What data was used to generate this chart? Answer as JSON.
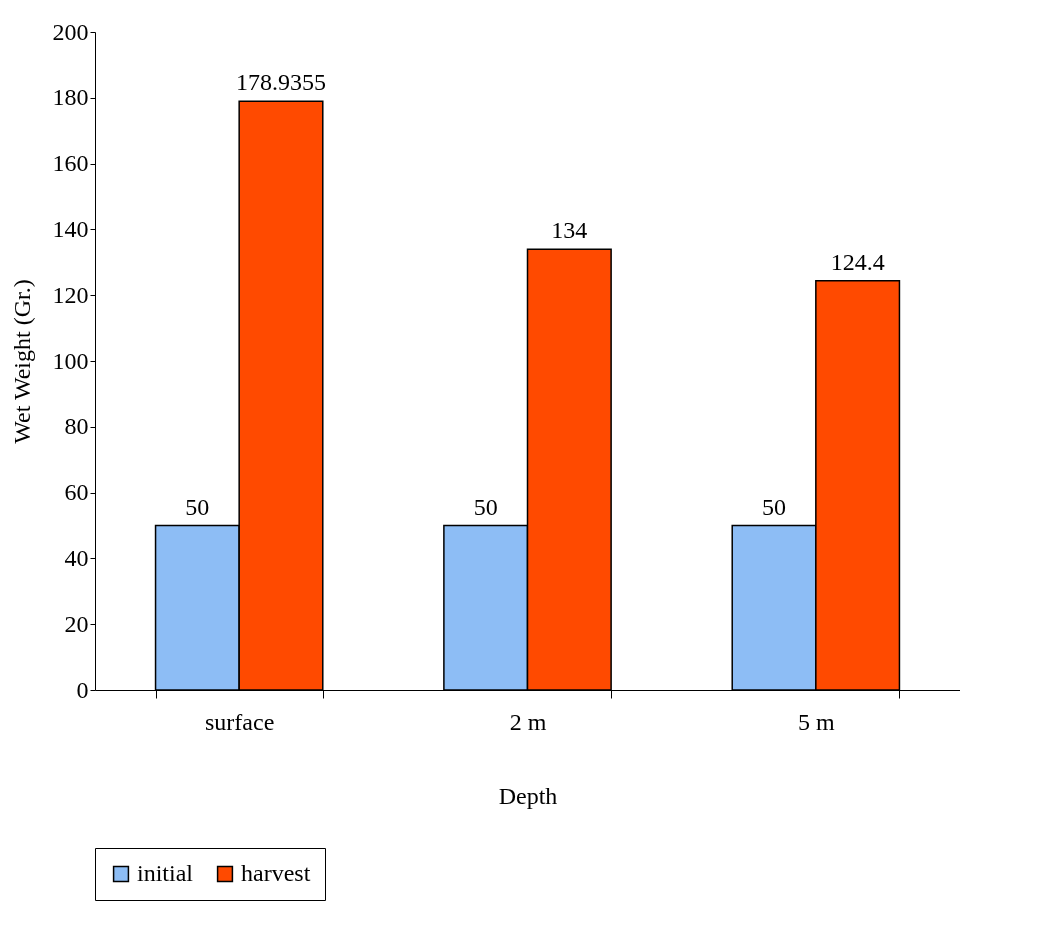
{
  "chart_data": {
    "type": "bar",
    "xlabel": "Depth",
    "ylabel": "Wet Weight (Gr.)",
    "categories": [
      "surface",
      "2 m",
      "5 m"
    ],
    "series": [
      {
        "name": "initial",
        "color": "#8dbdf5",
        "values": [
          50,
          50,
          50
        ]
      },
      {
        "name": "harvest",
        "color": "#ff4a00",
        "values": [
          178.9355,
          134,
          124.4
        ]
      }
    ],
    "ylim": [
      0,
      200
    ],
    "yticks": [
      0,
      20,
      40,
      60,
      80,
      100,
      120,
      140,
      160,
      180,
      200
    ],
    "grid": false,
    "legend": "bottom",
    "data_labels": true
  }
}
